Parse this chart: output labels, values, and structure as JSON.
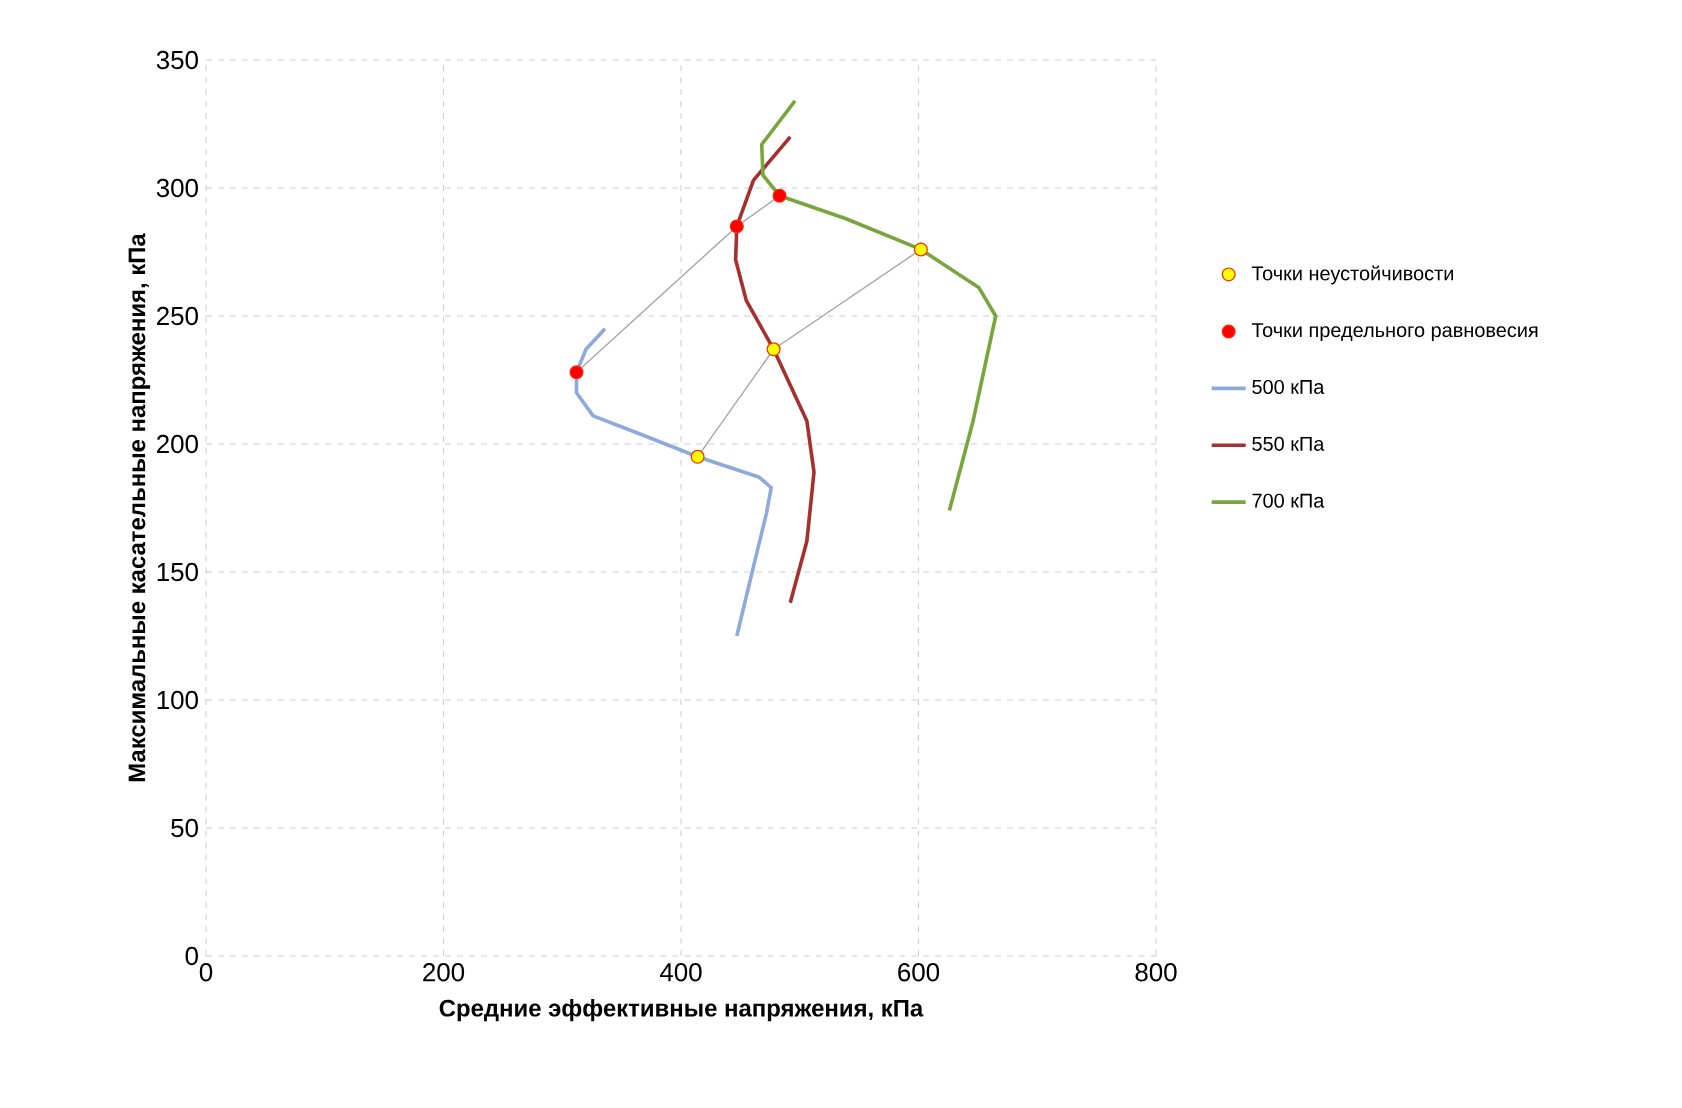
{
  "chart_data": {
    "type": "line",
    "xlabel": "Средние эффективные напряжения, кПа",
    "ylabel": "Максимальные касательные напряжения, кПа",
    "xlim": [
      0,
      800
    ],
    "xticks": [
      0,
      200,
      400,
      600,
      800
    ],
    "ylim": [
      0,
      350
    ],
    "yticks": [
      0,
      50,
      100,
      150,
      200,
      250,
      300,
      350
    ],
    "grid": true,
    "legend": "right",
    "series": [
      {
        "name": "Точки неустойчивости",
        "type": "scatter",
        "color": "#ffff00",
        "x": [
          414,
          478,
          602
        ],
        "values": [
          195,
          237,
          276
        ]
      },
      {
        "name": "Точки предельного равновесия",
        "type": "scatter",
        "color": "#ff0000",
        "x": [
          312,
          447,
          483
        ],
        "values": [
          228,
          285,
          297
        ]
      },
      {
        "name": "500 кПа",
        "color": "#8eaadb",
        "x": [
          447,
          461,
          472,
          476,
          466,
          414,
          365,
          326,
          312,
          312,
          320,
          336
        ],
        "values": [
          125,
          152,
          173,
          183,
          187,
          195,
          204,
          211,
          220,
          228,
          237,
          245
        ]
      },
      {
        "name": "550 кПа",
        "color": "#a5302e",
        "x": [
          492,
          506,
          512,
          506,
          478,
          455,
          446,
          447,
          461,
          492
        ],
        "values": [
          138,
          162,
          189,
          209,
          237,
          256,
          272,
          285,
          303,
          320
        ]
      },
      {
        "name": "700 кПа",
        "color": "#77a63c",
        "x": [
          626,
          646,
          665,
          651,
          602,
          539,
          483,
          469,
          468,
          496
        ],
        "values": [
          174,
          209,
          250,
          261,
          276,
          288,
          297,
          305,
          317,
          334
        ]
      },
      {
        "color": "#a6a6a6",
        "x": [
          312,
          447,
          483
        ],
        "values": [
          228,
          285,
          297
        ]
      },
      {
        "color": "#a6a6a6",
        "x": [
          414,
          478,
          602
        ],
        "values": [
          195,
          237,
          276
        ]
      }
    ]
  }
}
